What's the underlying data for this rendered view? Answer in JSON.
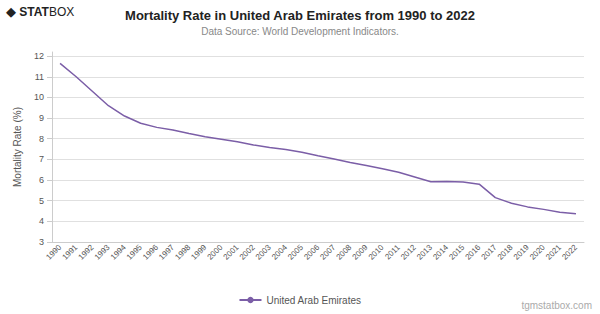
{
  "chart_data": {
    "type": "line",
    "title": "Mortality Rate in United Arab Emirates from 1990 to 2022",
    "subtitle": "Data Source: World Development Indicators.",
    "y_label": "Mortality Rate (%)",
    "annotations": [
      "◆",
      "STAT",
      "BOX",
      "tgmstatbox.com"
    ],
    "categories": [
      "1990",
      "1991",
      "1992",
      "1993",
      "1994",
      "1995",
      "1996",
      "1997",
      "1998",
      "1999",
      "2000",
      "2001",
      "2002",
      "2003",
      "2004",
      "2005",
      "2006",
      "2007",
      "2008",
      "2009",
      "2010",
      "2011",
      "2012",
      "2013",
      "2014",
      "2015",
      "2016",
      "2017",
      "2018",
      "2019",
      "2020",
      "2021",
      "2022"
    ],
    "series": [
      {
        "name": "United Arab Emirates",
        "color": "#7B5EA7",
        "values": [
          11.65,
          11.0,
          10.3,
          9.6,
          9.1,
          8.75,
          8.55,
          8.42,
          8.25,
          8.1,
          7.98,
          7.85,
          7.7,
          7.58,
          7.48,
          7.35,
          7.18,
          7.02,
          6.85,
          6.7,
          6.55,
          6.38,
          6.15,
          5.92,
          5.93,
          5.9,
          5.8,
          5.15,
          4.88,
          4.7,
          4.58,
          4.44,
          4.37
        ]
      }
    ],
    "ylim": [
      3,
      12.2
    ],
    "yticks": [
      3,
      4,
      5,
      6,
      7,
      8,
      9,
      10,
      11,
      12
    ],
    "grid": true,
    "legend": "bottom"
  }
}
